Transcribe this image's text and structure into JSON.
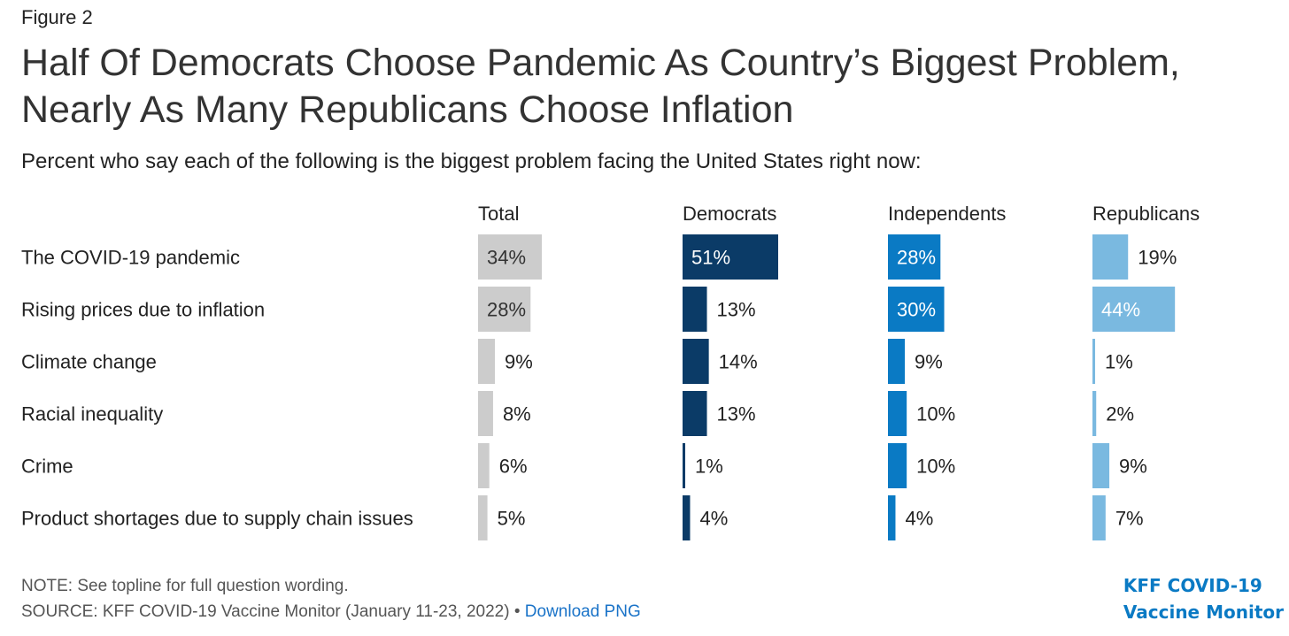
{
  "figure_label": "Figure 2",
  "title_lines": [
    "Half Of Democrats Choose Pandemic As Country’s Biggest Problem,",
    "Nearly As Many Republicans Choose Inflation"
  ],
  "subtitle": "Percent who say each of the following is the biggest problem facing the United States right now:",
  "chart_data": {
    "type": "bar",
    "orientation": "horizontal",
    "title": "Half Of Democrats Choose Pandemic As Country’s Biggest Problem, Nearly As Many Republicans Choose Inflation",
    "subtitle": "Percent who say each of the following is the biggest problem facing the United States right now:",
    "categories": [
      "The COVID-19 pandemic",
      "Rising prices due to inflation",
      "Climate change",
      "Racial inequality",
      "Crime",
      "Product shortages due to supply chain issues"
    ],
    "value_format": "percent",
    "series": [
      {
        "name": "Total",
        "values": [
          34,
          28,
          9,
          8,
          6,
          5
        ],
        "color": "#cccccc"
      },
      {
        "name": "Democrats",
        "values": [
          51,
          13,
          14,
          13,
          1,
          4
        ],
        "color": "#0b3b67"
      },
      {
        "name": "Independents",
        "values": [
          28,
          30,
          9,
          10,
          10,
          4
        ],
        "color": "#0a7ac4"
      },
      {
        "name": "Republicans",
        "values": [
          19,
          44,
          1,
          2,
          9,
          7
        ],
        "color": "#7ab9e0"
      }
    ],
    "xlim": [
      0,
      51
    ],
    "grid": false,
    "legend": "none"
  },
  "note": "NOTE: See topline for full question wording.",
  "source": "SOURCE: KFF COVID-19 Vaccine Monitor (January 11-23, 2022) •",
  "download_link": "Download PNG",
  "logo_lines": [
    "KFF COVID-19",
    "Vaccine Monitor"
  ]
}
